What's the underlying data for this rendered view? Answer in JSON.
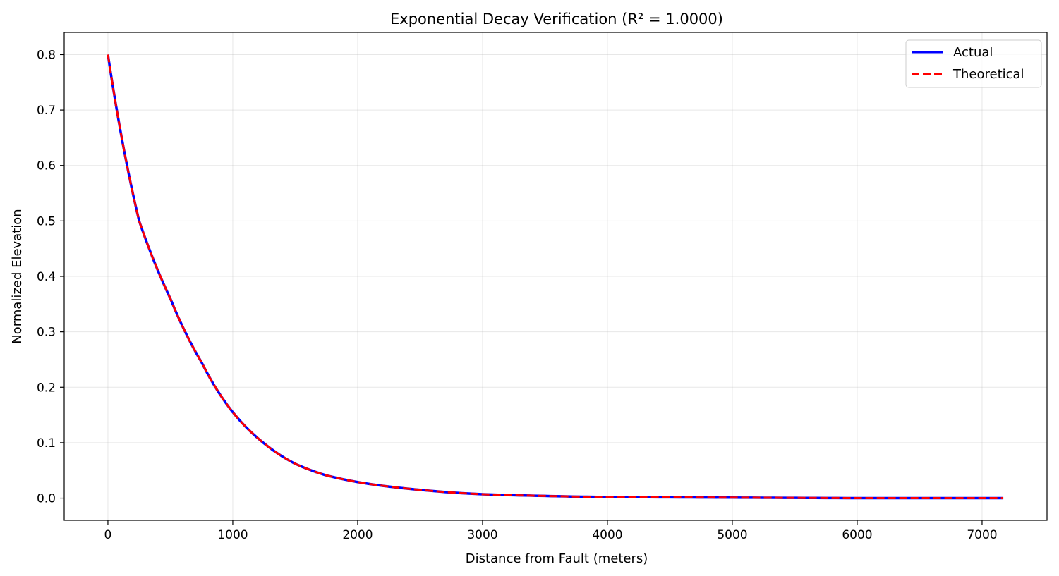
{
  "chart_data": {
    "type": "line",
    "title": "Exponential Decay Verification (R² = 1.0000)",
    "xlabel": "Distance from Fault (meters)",
    "ylabel": "Normalized Elevation",
    "xlim": [
      -350,
      7520
    ],
    "ylim": [
      -0.04,
      0.84
    ],
    "xticks": [
      0,
      1000,
      2000,
      3000,
      4000,
      5000,
      6000,
      7000
    ],
    "xtick_labels": [
      "0",
      "1000",
      "2000",
      "3000",
      "4000",
      "5000",
      "6000",
      "7000"
    ],
    "yticks": [
      0.0,
      0.1,
      0.2,
      0.3,
      0.4,
      0.5,
      0.6,
      0.7,
      0.8
    ],
    "ytick_labels": [
      "0.0",
      "0.1",
      "0.2",
      "0.3",
      "0.4",
      "0.5",
      "0.6",
      "0.7",
      "0.8"
    ],
    "grid": true,
    "legend_position": "top-right",
    "series": [
      {
        "name": "Actual",
        "color": "#0000ff",
        "style": "solid",
        "x": [
          0,
          250,
          500,
          750,
          1000,
          1250,
          1500,
          1750,
          2000,
          2500,
          3000,
          3500,
          4000,
          5000,
          6000,
          7000,
          7170
        ],
        "y": [
          0.8,
          0.5,
          0.36,
          0.245,
          0.155,
          0.099,
          0.062,
          0.041,
          0.029,
          0.015,
          0.007,
          0.004,
          0.002,
          0.001,
          0.0,
          0.0,
          0.0
        ]
      },
      {
        "name": "Theoretical",
        "color": "#ff0000",
        "style": "dashed",
        "x": [
          0,
          250,
          500,
          750,
          1000,
          1250,
          1500,
          1750,
          2000,
          2500,
          3000,
          3500,
          4000,
          5000,
          6000,
          7000,
          7170
        ],
        "y": [
          0.8,
          0.5,
          0.36,
          0.245,
          0.155,
          0.099,
          0.062,
          0.041,
          0.029,
          0.015,
          0.007,
          0.004,
          0.002,
          0.001,
          0.0,
          0.0,
          0.0
        ]
      }
    ]
  }
}
